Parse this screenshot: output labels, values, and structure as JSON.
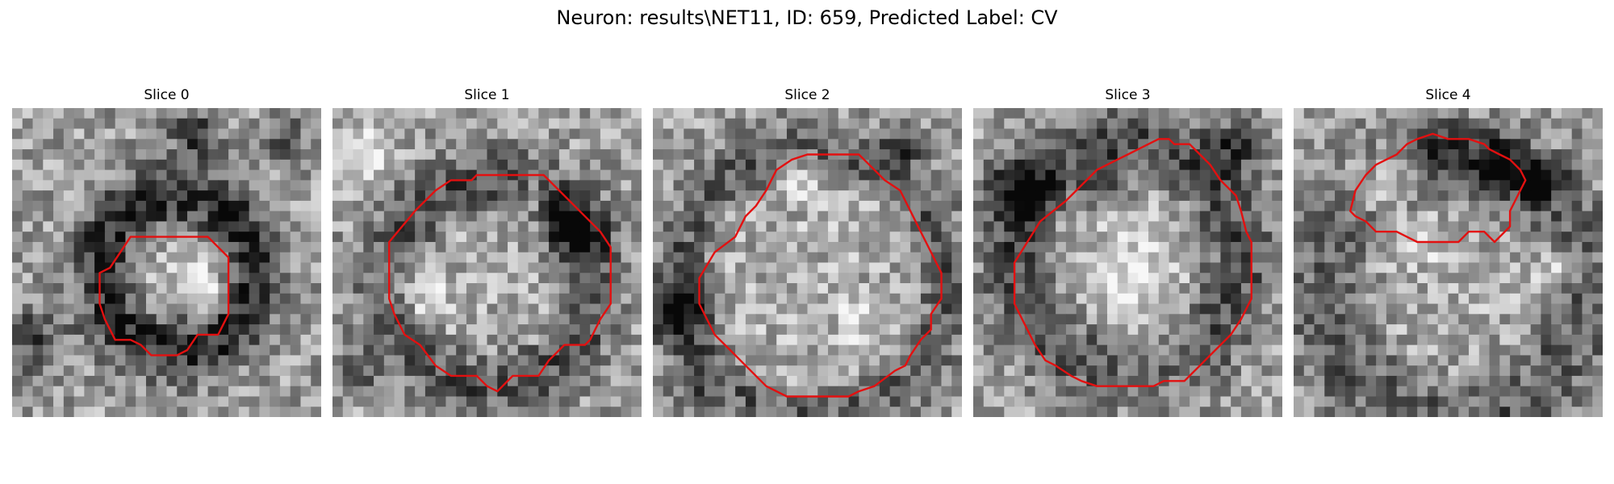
{
  "figure": {
    "title": "Neuron: results\\NET11, ID: 659, Predicted Label: CV"
  },
  "panels": [
    {
      "title": "Slice 0",
      "content": "grayscale-noise-image",
      "overlay": "roi-contour"
    },
    {
      "title": "Slice 1",
      "content": "grayscale-noise-image",
      "overlay": "roi-contour"
    },
    {
      "title": "Slice 2",
      "content": "grayscale-noise-image",
      "overlay": "roi-contour"
    },
    {
      "title": "Slice 3",
      "content": "grayscale-noise-image",
      "overlay": "roi-contour"
    },
    {
      "title": "Slice 4",
      "content": "grayscale-noise-image",
      "overlay": "roi-contour"
    }
  ],
  "colors": {
    "contour": "#e31010",
    "background": "#ffffff"
  }
}
